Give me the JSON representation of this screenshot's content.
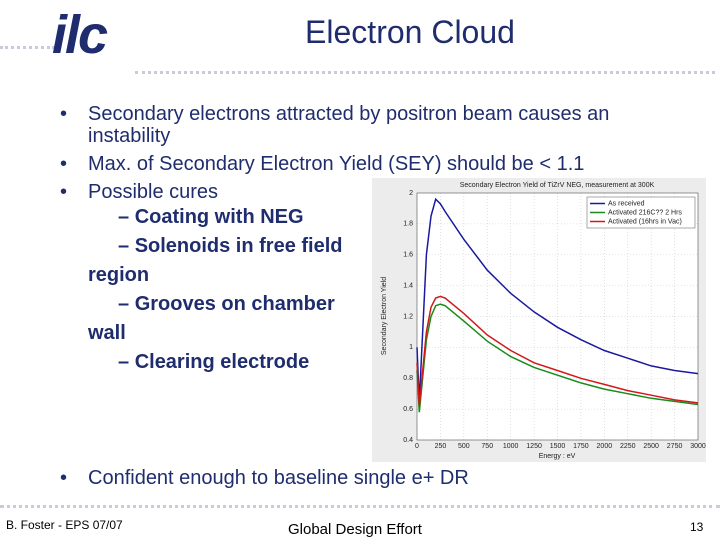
{
  "header": {
    "logo": "ilc",
    "title": "Electron Cloud"
  },
  "bullets": [
    {
      "text": "Secondary electrons attracted by positron beam causes an instability"
    },
    {
      "text": "Max. of Secondary Electron Yield (SEY) should be < 1.1"
    },
    {
      "text": "Possible cures",
      "subitems": [
        "Coating with NEG",
        "Solenoids in free field region",
        "Grooves on chamber wall",
        "Clearing electrode"
      ]
    },
    {
      "text": "Confident enough to baseline single e+ DR"
    }
  ],
  "chart_data": {
    "type": "line",
    "title": "Secondary Electron Yield of TiZrV NEG, measurement at 300K",
    "x_label": "Energy : eV",
    "y_label": "Secondary Electron Yield",
    "x": [
      0,
      25,
      100,
      150,
      200,
      250,
      300,
      500,
      750,
      1000,
      1250,
      1500,
      1750,
      2000,
      2250,
      2500,
      2750,
      3000
    ],
    "series": [
      {
        "name": "As received",
        "color": "#1a1aa0",
        "values": [
          1.0,
          0.65,
          1.6,
          1.85,
          1.96,
          1.93,
          1.88,
          1.7,
          1.5,
          1.35,
          1.23,
          1.13,
          1.05,
          0.98,
          0.93,
          0.88,
          0.85,
          0.83
        ]
      },
      {
        "name": "Activated 216C?? 2 Hrs",
        "color": "#1a8a1a",
        "values": [
          0.85,
          0.58,
          1.05,
          1.2,
          1.27,
          1.28,
          1.27,
          1.17,
          1.04,
          0.94,
          0.87,
          0.82,
          0.77,
          0.73,
          0.7,
          0.67,
          0.65,
          0.63
        ]
      },
      {
        "name": "Activated (16hrs in Vac)",
        "color": "#d01a1a",
        "values": [
          0.9,
          0.62,
          1.1,
          1.26,
          1.32,
          1.33,
          1.32,
          1.22,
          1.08,
          0.98,
          0.9,
          0.85,
          0.8,
          0.76,
          0.72,
          0.69,
          0.66,
          0.64
        ]
      }
    ],
    "xlim": [
      0,
      3000
    ],
    "xticks": [
      0,
      250,
      500,
      750,
      1000,
      1250,
      1500,
      1750,
      2000,
      2250,
      2500,
      2750,
      3000
    ],
    "ylim": [
      0.4,
      2
    ],
    "yticks": [
      0.4,
      0.6,
      0.8,
      1,
      1.2,
      1.4,
      1.6,
      1.8,
      2
    ],
    "grid": true,
    "legend": "top-right"
  },
  "footer": {
    "author": "B. Foster - EPS 07/07",
    "center": "Global Design Effort",
    "page": "13"
  }
}
